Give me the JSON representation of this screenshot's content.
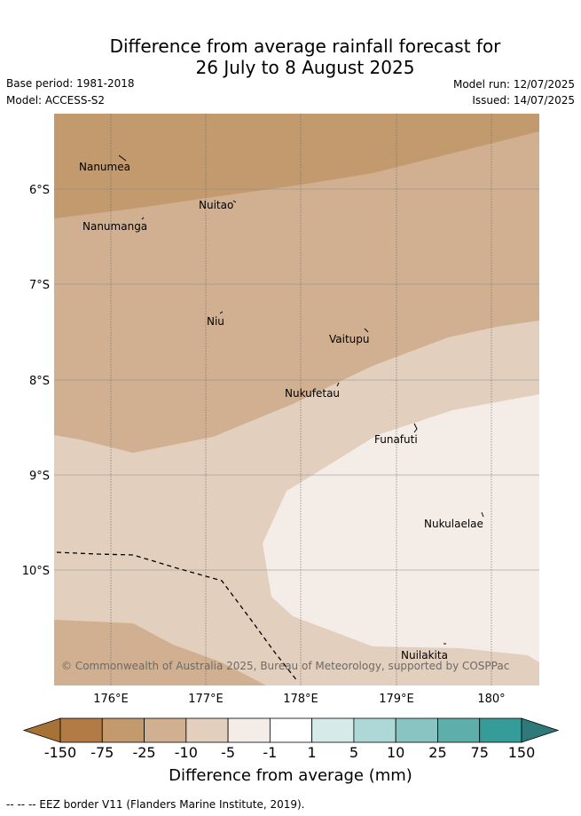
{
  "header": {
    "title_line1": "Difference from average rainfall forecast for",
    "title_line2": "26 July to 8 August 2025",
    "base_period": "Base period: 1981-2018",
    "model": "Model: ACCESS-S2",
    "model_run": "Model run: 12/07/2025",
    "issued": "Issued: 14/07/2025"
  },
  "map": {
    "lat_labels": [
      "6°S",
      "7°S",
      "8°S",
      "9°S",
      "10°S"
    ],
    "lon_labels": [
      "176°E",
      "177°E",
      "178°E",
      "179°E",
      "180°"
    ],
    "islands": [
      "Nanumea",
      "Nuitao",
      "Nanumanga",
      "Niu",
      "Vaitupu",
      "Nukufetau",
      "Funafuti",
      "Nukulaelae",
      "Nuilakita"
    ],
    "copyright": "© Commonwealth of Australia 2025, Bureau of Meteorology, supported by COSPPac",
    "band_colors": {
      "m75_m25": "#c29a6d",
      "m25_m10": "#d0b091",
      "m10_m5": "#e2cfbe",
      "m5_m1": "#f4ece6"
    }
  },
  "colorbar": {
    "ticks": [
      "-150",
      "-75",
      "-25",
      "-10",
      "-5",
      "-1",
      "1",
      "5",
      "10",
      "25",
      "75",
      "150"
    ],
    "colors": [
      "#a67236",
      "#b27a45",
      "#c29a6d",
      "#d0b091",
      "#e2cfbe",
      "#f4ece6",
      "#ffffff",
      "#d5ebea",
      "#add8d7",
      "#89c4c3",
      "#5eaeac",
      "#369c9a",
      "#2e7a7a"
    ],
    "title": "Difference from average (mm)"
  },
  "footnote": "--  --  -- EEZ border V11 (Flanders Marine Institute, 2019)."
}
